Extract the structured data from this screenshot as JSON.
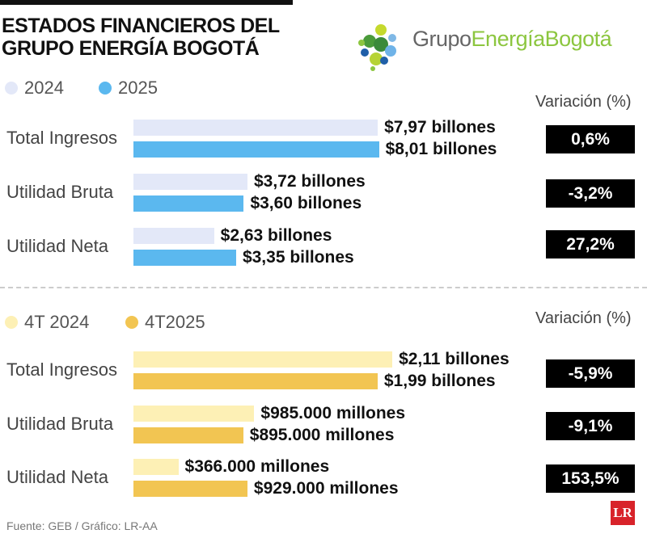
{
  "title_line1": "ESTADOS FINANCIEROS DEL",
  "title_line2": "GRUPO ENERGÍA BOGOTÁ",
  "logo": {
    "part1": "Grupo",
    "part2": "Energía",
    "part3": "Bogotá",
    "color_gray": "#666666",
    "color_green": "#8cc63f"
  },
  "source": "Fuente: GEB / Gráfico: LR-AA",
  "brand_badge": "LR",
  "chart_data": [
    {
      "type": "bar",
      "orientation": "horizontal",
      "categories": [
        "Total Ingresos",
        "Utilidad Bruta",
        "Utilidad Neta"
      ],
      "series": [
        {
          "name": "2024",
          "color": "#e3e8f8",
          "values": [
            7.97,
            3.72,
            2.63
          ],
          "labels": [
            "$7,97 billones",
            "$3,72 billones",
            "$2,63 billones"
          ]
        },
        {
          "name": "2025",
          "color": "#5bb8ef",
          "values": [
            8.01,
            3.6,
            3.35
          ],
          "labels": [
            "$8,01 billones",
            "$3,60 billones",
            "$3,35 billones"
          ]
        }
      ],
      "variation_header": "Variación (%)",
      "variations": [
        "0,6%",
        "-3,2%",
        "27,2%"
      ]
    },
    {
      "type": "bar",
      "orientation": "horizontal",
      "categories": [
        "Total Ingresos",
        "Utilidad Bruta",
        "Utilidad Neta"
      ],
      "series": [
        {
          "name": "4T 2024",
          "color": "#fdf0b5",
          "values": [
            2.11,
            0.985,
            0.366
          ],
          "labels": [
            "$2,11 billones",
            "$985.000 millones",
            "$366.000 millones"
          ]
        },
        {
          "name": "4T2025",
          "color": "#f2c552",
          "values": [
            1.99,
            0.895,
            0.929
          ],
          "labels": [
            "$1,99 billones",
            "$895.000 millones",
            "$929.000 millones"
          ]
        }
      ],
      "variation_header": "Variación (%)",
      "variations": [
        "-5,9%",
        "-9,1%",
        "153,5%"
      ]
    }
  ]
}
